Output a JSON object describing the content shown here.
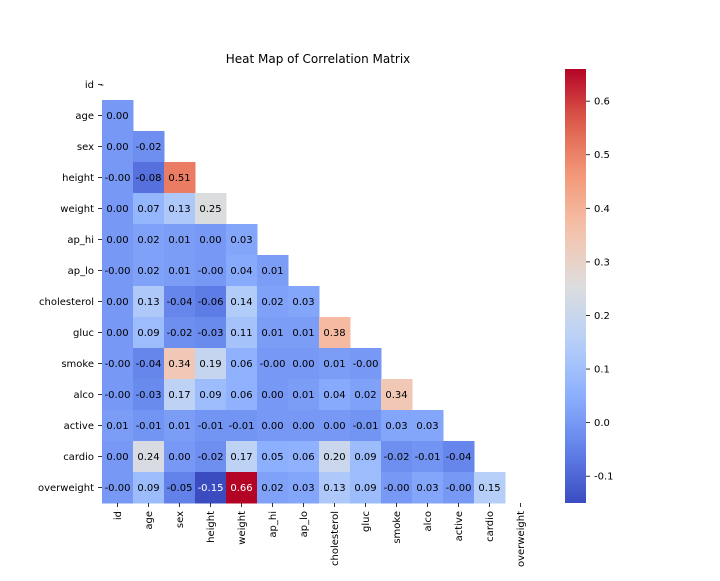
{
  "chart_data": {
    "type": "heatmap",
    "title": "Heat Map of Correlation Matrix",
    "variables": [
      "id",
      "age",
      "sex",
      "height",
      "weight",
      "ap_hi",
      "ap_lo",
      "cholesterol",
      "gluc",
      "smoke",
      "alco",
      "active",
      "cardio",
      "overweight"
    ],
    "mask": "upper-triangle-including-diagonal",
    "lower_triangle_values": [
      [],
      [
        "0.00"
      ],
      [
        "0.00",
        "-0.02"
      ],
      [
        "-0.00",
        "-0.08",
        "0.51"
      ],
      [
        "0.00",
        "0.07",
        "0.13",
        "0.25"
      ],
      [
        "0.00",
        "0.02",
        "0.01",
        "0.00",
        "0.03"
      ],
      [
        "-0.00",
        "0.02",
        "0.01",
        "-0.00",
        "0.04",
        "0.01"
      ],
      [
        "0.00",
        "0.13",
        "-0.04",
        "-0.06",
        "0.14",
        "0.02",
        "0.03"
      ],
      [
        "0.00",
        "0.09",
        "-0.02",
        "-0.03",
        "0.11",
        "0.01",
        "0.01",
        "0.38"
      ],
      [
        "-0.00",
        "-0.04",
        "0.34",
        "0.19",
        "0.06",
        "-0.00",
        "0.00",
        "0.01",
        "-0.00"
      ],
      [
        "-0.00",
        "-0.03",
        "0.17",
        "0.09",
        "0.06",
        "0.00",
        "0.01",
        "0.04",
        "0.02",
        "0.34"
      ],
      [
        "0.01",
        "-0.01",
        "0.01",
        "-0.01",
        "-0.01",
        "0.00",
        "0.00",
        "0.00",
        "-0.01",
        "0.03",
        "0.03"
      ],
      [
        "0.00",
        "0.24",
        "0.00",
        "-0.02",
        "0.17",
        "0.05",
        "0.06",
        "0.20",
        "0.09",
        "-0.02",
        "-0.01",
        "-0.04"
      ],
      [
        "-0.00",
        "0.09",
        "-0.05",
        "-0.15",
        "0.66",
        "0.02",
        "0.03",
        "0.13",
        "0.09",
        "-0.00",
        "0.03",
        "-0.00",
        "0.15"
      ]
    ],
    "colormap": "coolwarm",
    "colorbar": {
      "vmin": -0.15,
      "vmax": 0.66,
      "ticks": [
        "-0.1",
        "0.0",
        "0.1",
        "0.2",
        "0.3",
        "0.4",
        "0.5",
        "0.6"
      ],
      "tick_values": [
        -0.1,
        0.0,
        0.1,
        0.2,
        0.3,
        0.4,
        0.5,
        0.6
      ]
    },
    "diagonal_first_row_label": "-"
  }
}
